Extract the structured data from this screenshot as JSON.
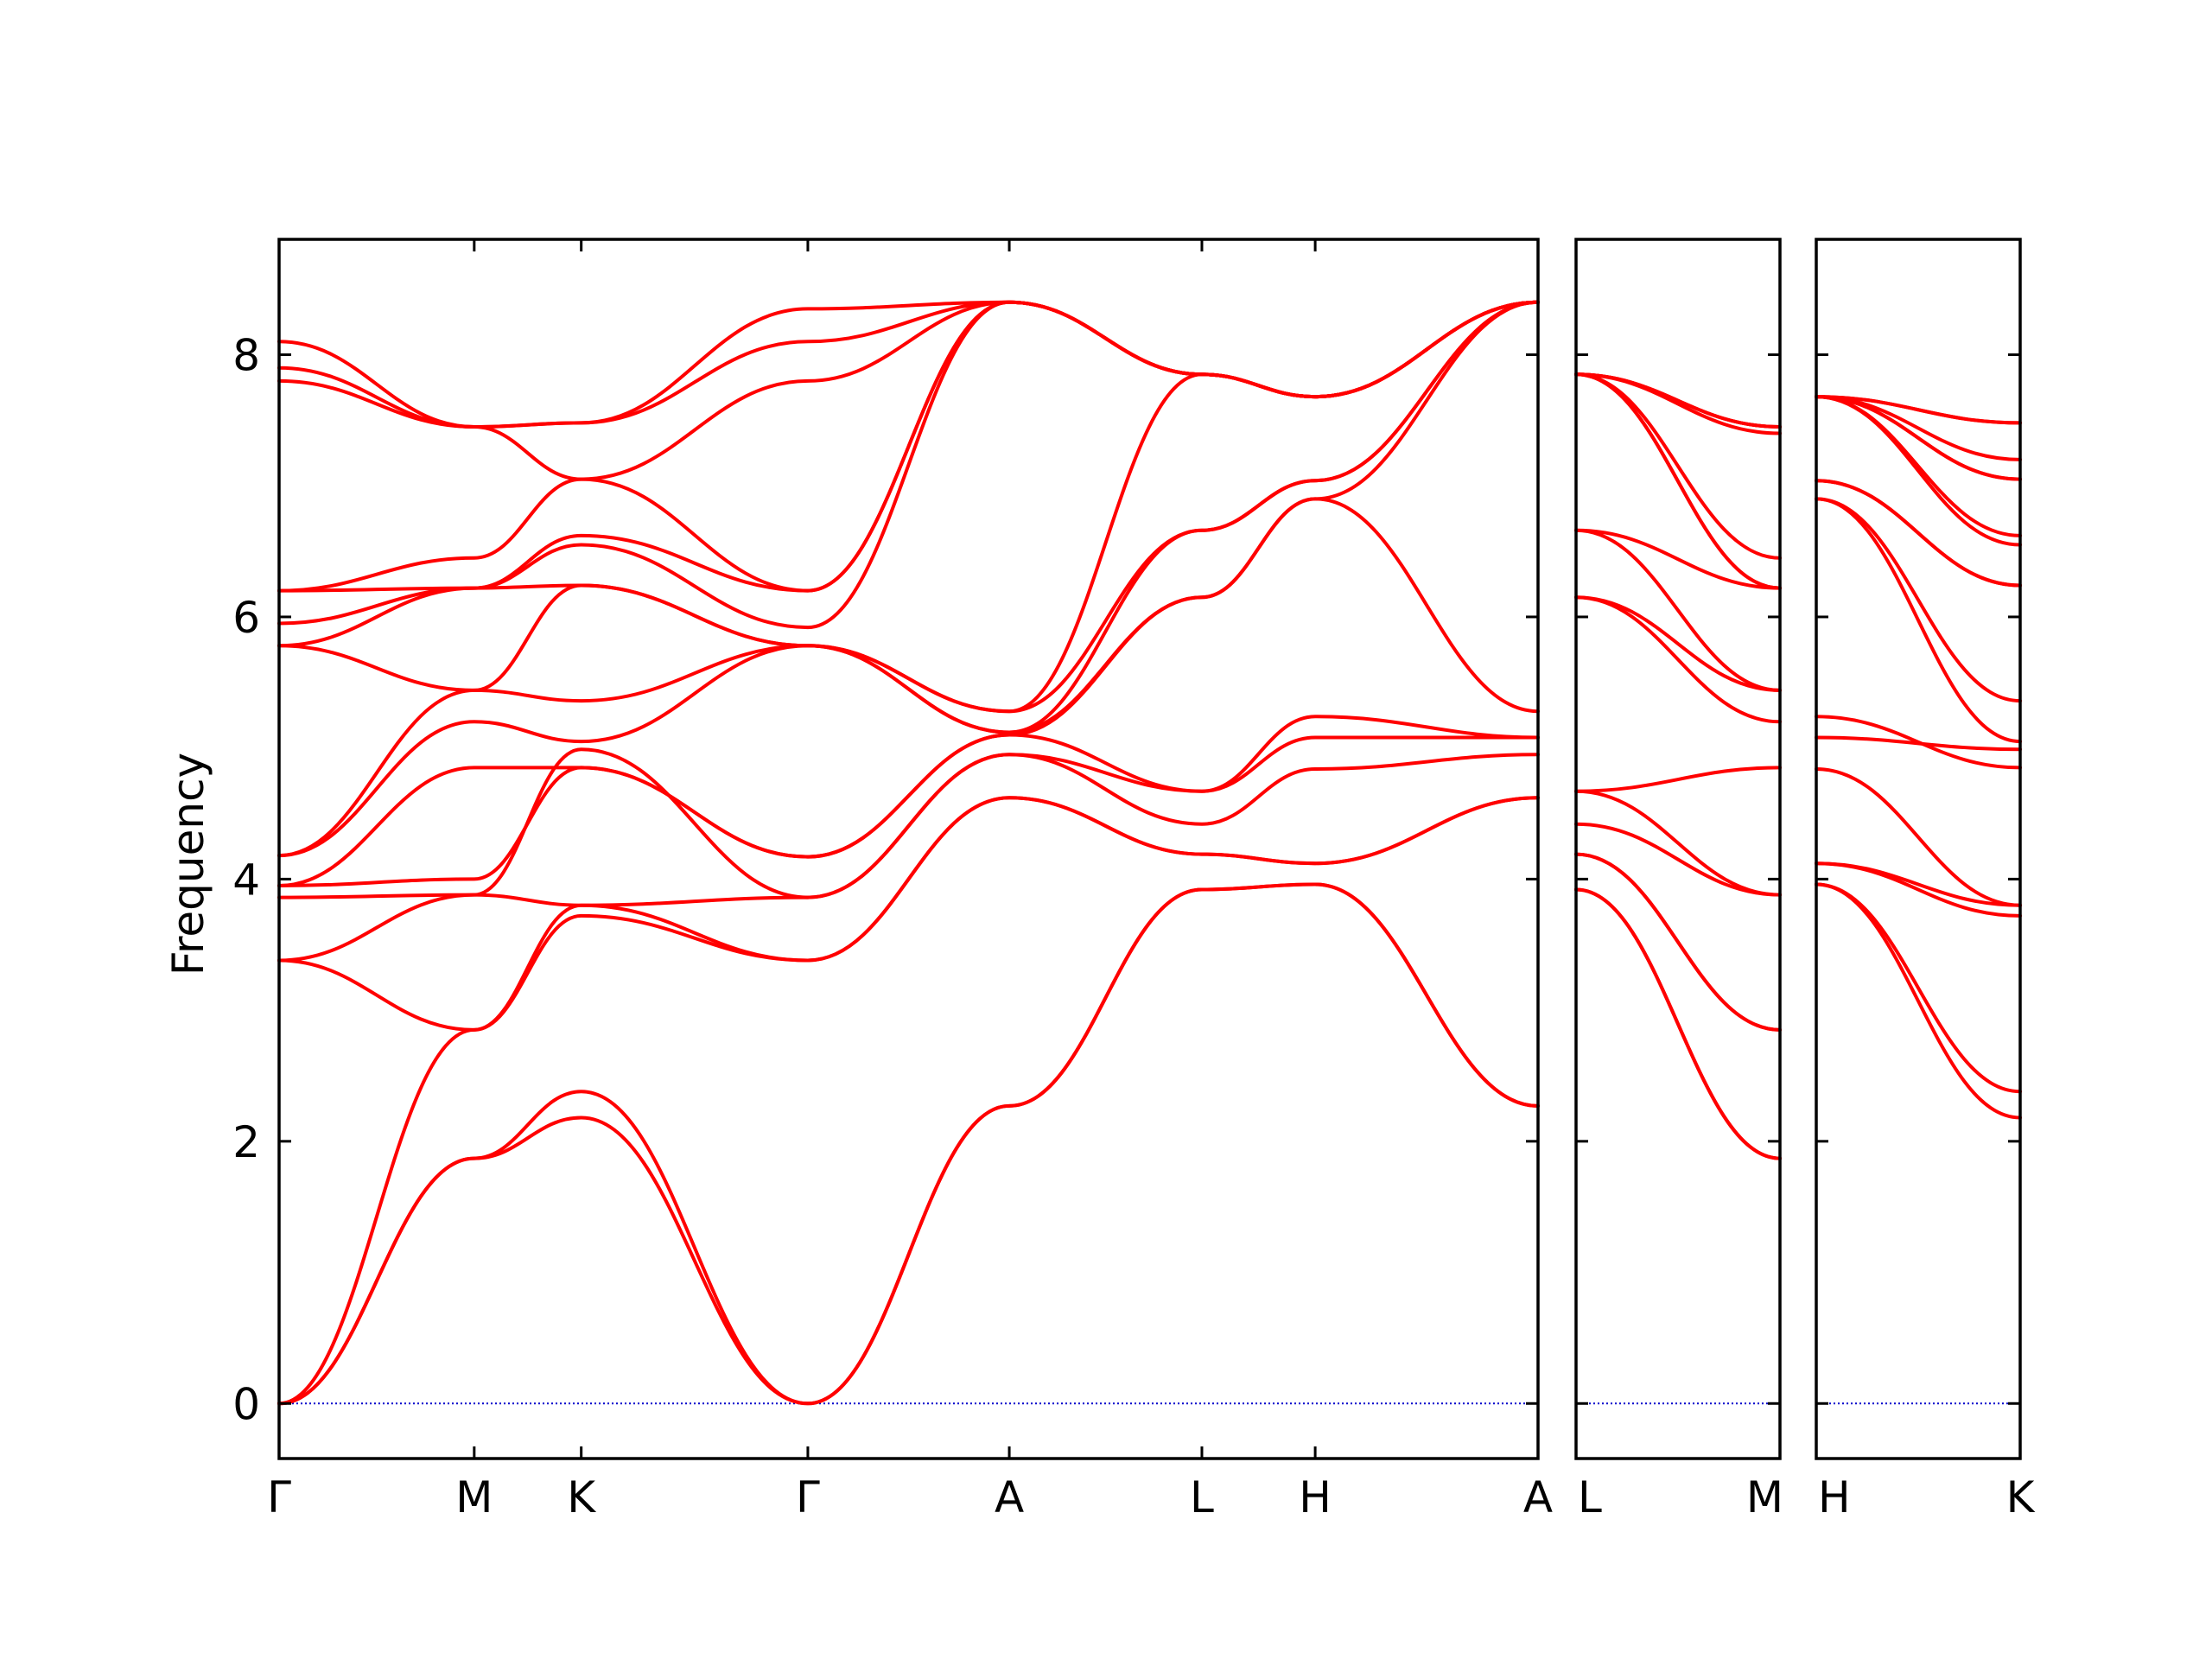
{
  "chart_data": {
    "type": "line",
    "ylabel": "Frequency",
    "ylim": [
      -0.42,
      8.88
    ],
    "yticks": [
      0,
      2,
      4,
      6,
      8
    ],
    "band_color": "#ff0000",
    "zero_line_color": "#0000cc",
    "grid": false,
    "panels": [
      {
        "xticks": [
          "Γ",
          "M",
          "K",
          "Γ",
          "A",
          "L",
          "H",
          "A"
        ],
        "tick_fraction": [
          0.0,
          0.155,
          0.24,
          0.42,
          0.58,
          0.733,
          0.823,
          1.0
        ],
        "bands": [
          [
            0,
            1.87,
            2.18,
            0,
            2.27,
            3.92,
            3.96,
            2.27
          ],
          [
            0,
            1.87,
            2.38,
            0,
            2.27,
            3.92,
            3.96,
            2.27
          ],
          [
            0,
            2.85,
            3.72,
            3.38,
            4.62,
            4.19,
            4.12,
            4.62
          ],
          [
            3.38,
            2.85,
            3.8,
            3.38,
            4.62,
            4.19,
            4.12,
            4.62
          ],
          [
            3.38,
            3.88,
            3.8,
            3.86,
            4.95,
            4.42,
            4.84,
            4.95
          ],
          [
            3.86,
            3.88,
            4.99,
            3.86,
            4.95,
            4.67,
            5.08,
            5.08
          ],
          [
            3.95,
            4.0,
            4.85,
            4.17,
            5.1,
            4.67,
            5.24,
            5.08
          ],
          [
            3.95,
            4.85,
            4.85,
            4.17,
            5.1,
            6.15,
            6.9,
            5.28
          ],
          [
            4.18,
            5.2,
            5.05,
            5.78,
            5.12,
            6.15,
            6.9,
            8.4
          ],
          [
            4.18,
            5.44,
            5.36,
            5.78,
            5.12,
            6.66,
            7.04,
            8.4
          ],
          [
            5.78,
            5.44,
            6.24,
            5.78,
            5.28,
            6.66,
            7.04,
            8.4
          ],
          [
            5.78,
            6.22,
            6.24,
            5.78,
            5.28,
            7.85,
            7.68,
            8.4
          ],
          [
            5.95,
            6.22,
            6.55,
            5.92,
            8.4,
            7.85,
            7.68,
            8.4
          ],
          [
            6.2,
            6.22,
            6.62,
            6.2,
            8.4,
            7.85,
            7.68,
            8.4
          ],
          [
            6.2,
            6.45,
            7.05,
            6.2,
            8.4,
            7.85,
            7.68,
            8.4
          ],
          [
            7.8,
            7.45,
            7.05,
            7.8,
            8.4,
            7.85,
            7.68,
            8.4
          ],
          [
            7.9,
            7.45,
            7.48,
            8.1,
            8.4,
            7.85,
            7.68,
            8.4
          ],
          [
            8.1,
            7.45,
            7.48,
            8.35,
            8.4,
            7.85,
            7.68,
            8.4
          ]
        ]
      },
      {
        "xticks": [
          "L",
          "M"
        ],
        "tick_fraction": [
          0.0,
          1.0
        ],
        "bands": [
          [
            3.92,
            1.87
          ],
          [
            3.92,
            1.87
          ],
          [
            4.19,
            2.85
          ],
          [
            4.19,
            2.85
          ],
          [
            4.42,
            3.88
          ],
          [
            4.67,
            3.88
          ],
          [
            4.67,
            4.85
          ],
          [
            6.15,
            5.2
          ],
          [
            6.15,
            5.44
          ],
          [
            6.66,
            5.44
          ],
          [
            6.66,
            6.22
          ],
          [
            7.85,
            6.22
          ],
          [
            7.85,
            6.22
          ],
          [
            7.85,
            6.45
          ],
          [
            7.85,
            7.4
          ],
          [
            7.85,
            7.45
          ],
          [
            7.85,
            7.45
          ],
          [
            7.85,
            7.45
          ]
        ]
      },
      {
        "xticks": [
          "H",
          "K"
        ],
        "tick_fraction": [
          0.0,
          1.0
        ],
        "bands": [
          [
            3.96,
            2.18
          ],
          [
            3.96,
            2.38
          ],
          [
            4.12,
            3.72
          ],
          [
            4.12,
            3.8
          ],
          [
            4.84,
            3.8
          ],
          [
            5.08,
            4.99
          ],
          [
            5.24,
            4.85
          ],
          [
            6.9,
            5.05
          ],
          [
            6.9,
            5.36
          ],
          [
            7.04,
            6.24
          ],
          [
            7.04,
            6.24
          ],
          [
            7.68,
            6.55
          ],
          [
            7.68,
            6.62
          ],
          [
            7.68,
            7.05
          ],
          [
            7.68,
            7.05
          ],
          [
            7.68,
            7.48
          ],
          [
            7.68,
            7.48
          ],
          [
            7.68,
            7.2
          ]
        ]
      }
    ]
  }
}
